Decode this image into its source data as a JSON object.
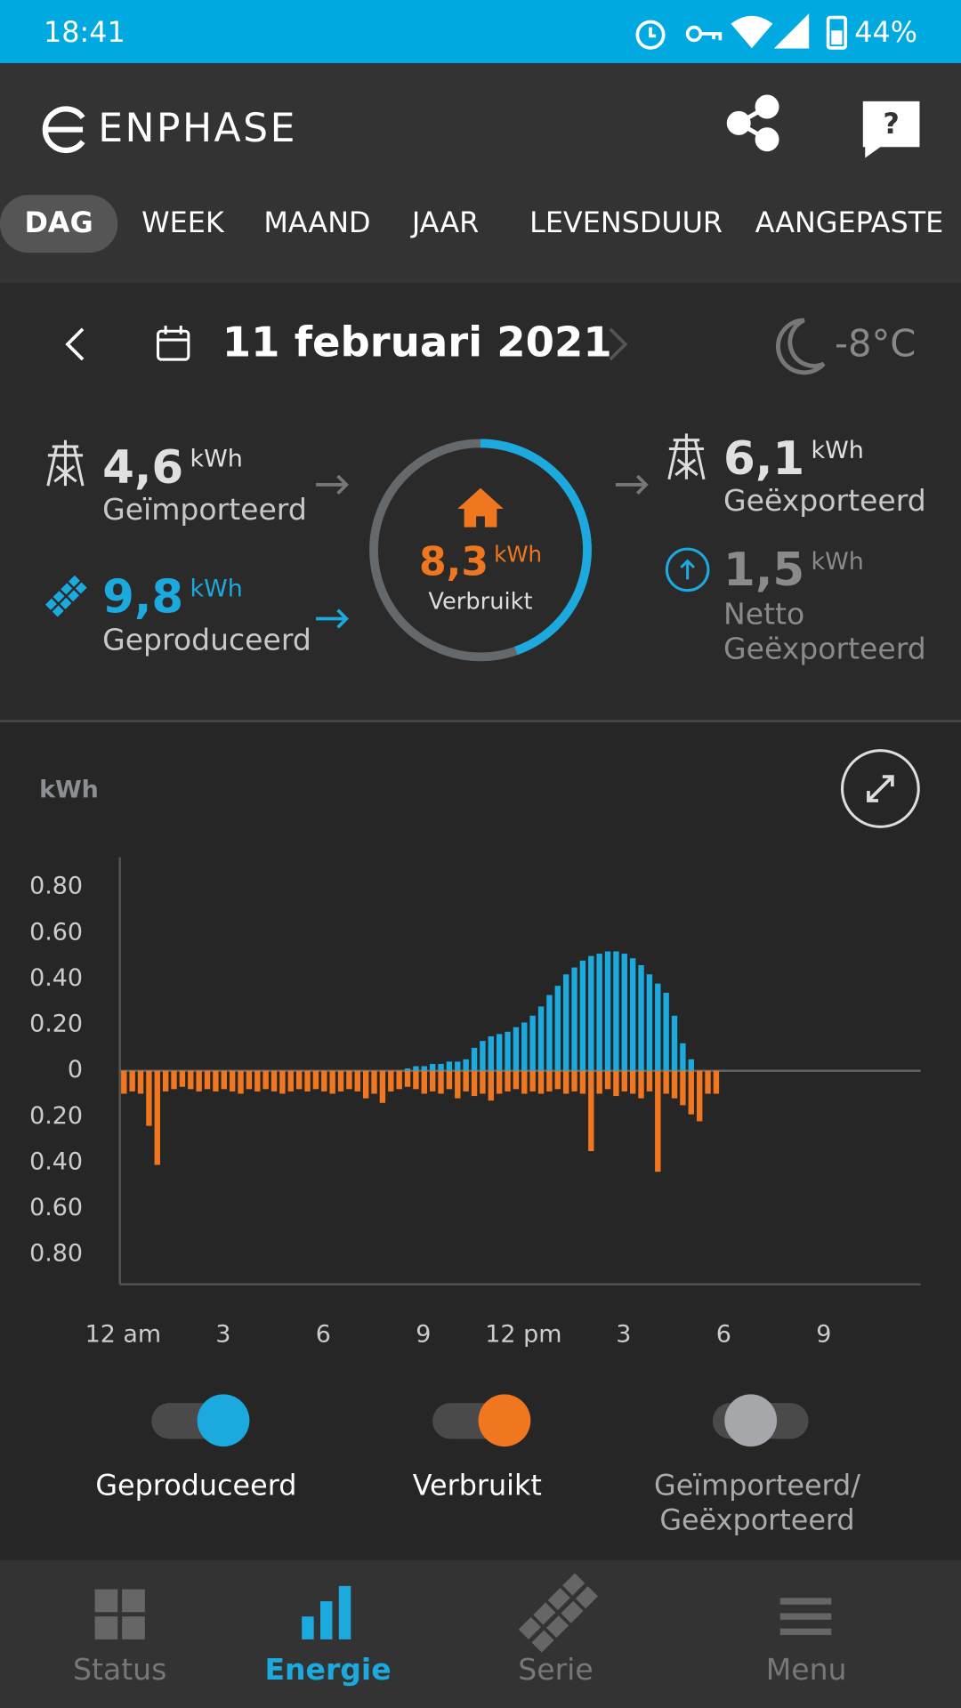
{
  "status_bar": {
    "time": "18:41",
    "battery": "44%"
  },
  "header": {
    "brand": "ENPHASE"
  },
  "tabs": [
    "DAG",
    "WEEK",
    "MAAND",
    "JAAR",
    "LEVENSDUUR",
    "AANGEPASTE"
  ],
  "date_bar": {
    "date": "11 februari 2021",
    "temperature": "-8°C"
  },
  "summary": {
    "imported": {
      "value": 4.6,
      "label": "4,6",
      "unit": "kWh",
      "caption": "Geïmporteerd"
    },
    "produced": {
      "value": 9.8,
      "label": "9,8",
      "unit": "kWh",
      "caption": "Geproduceerd"
    },
    "consumed": {
      "value": 8.3,
      "label": "8,3",
      "unit": "kWh",
      "caption": "Verbruikt"
    },
    "exported": {
      "value": 6.1,
      "label": "6,1",
      "unit": "kWh",
      "caption": "Geëxporteerd"
    },
    "net_exported": {
      "value": 1.5,
      "label": "1,5",
      "unit": "kWh",
      "caption": [
        "Netto",
        "Geëxporteerd"
      ]
    }
  },
  "chart_data": {
    "type": "bar",
    "ylabel": "kWh",
    "x": [
      0,
      0.25,
      0.5,
      0.75,
      1,
      1.25,
      1.5,
      1.75,
      2,
      2.25,
      2.5,
      2.75,
      3,
      3.25,
      3.5,
      3.75,
      4,
      4.25,
      4.5,
      4.75,
      5,
      5.25,
      5.5,
      5.75,
      6,
      6.25,
      6.5,
      6.75,
      7,
      7.25,
      7.5,
      7.75,
      8,
      8.25,
      8.5,
      8.75,
      9,
      9.25,
      9.5,
      9.75,
      10,
      10.25,
      10.5,
      10.75,
      11,
      11.25,
      11.5,
      11.75,
      12,
      12.25,
      12.5,
      12.75,
      13,
      13.25,
      13.5,
      13.75,
      14,
      14.25,
      14.5,
      14.75,
      15,
      15.25,
      15.5,
      15.75,
      16,
      16.25,
      16.5,
      16.75,
      17,
      17.25,
      17.5,
      17.75
    ],
    "series": [
      {
        "name": "Geproduceerd",
        "color": "#1ba9de",
        "visible": true,
        "values": [
          0,
          0,
          0,
          0,
          0,
          0,
          0,
          0,
          0,
          0,
          0,
          0,
          0,
          0,
          0,
          0,
          0,
          0,
          0,
          0,
          0,
          0,
          0,
          0,
          0,
          0,
          0,
          0,
          0,
          0,
          0,
          0,
          0,
          0,
          0.01,
          0.02,
          0.02,
          0.03,
          0.03,
          0.04,
          0.04,
          0.05,
          0.1,
          0.13,
          0.15,
          0.16,
          0.17,
          0.19,
          0.21,
          0.24,
          0.28,
          0.33,
          0.37,
          0.42,
          0.45,
          0.48,
          0.5,
          0.51,
          0.52,
          0.52,
          0.51,
          0.49,
          0.46,
          0.42,
          0.38,
          0.34,
          0.24,
          0.12,
          0.05,
          0,
          0,
          0
        ]
      },
      {
        "name": "Verbruikt",
        "color": "#f07620",
        "visible": true,
        "values": [
          -0.1,
          -0.09,
          -0.1,
          -0.24,
          -0.41,
          -0.09,
          -0.08,
          -0.07,
          -0.08,
          -0.09,
          -0.08,
          -0.09,
          -0.08,
          -0.09,
          -0.1,
          -0.08,
          -0.09,
          -0.08,
          -0.09,
          -0.1,
          -0.09,
          -0.08,
          -0.09,
          -0.08,
          -0.09,
          -0.1,
          -0.09,
          -0.08,
          -0.09,
          -0.12,
          -0.1,
          -0.14,
          -0.09,
          -0.08,
          -0.07,
          -0.08,
          -0.1,
          -0.09,
          -0.1,
          -0.08,
          -0.12,
          -0.09,
          -0.11,
          -0.1,
          -0.13,
          -0.1,
          -0.09,
          -0.08,
          -0.1,
          -0.09,
          -0.1,
          -0.09,
          -0.08,
          -0.1,
          -0.09,
          -0.1,
          -0.35,
          -0.1,
          -0.08,
          -0.11,
          -0.09,
          -0.1,
          -0.12,
          -0.09,
          -0.44,
          -0.1,
          -0.12,
          -0.15,
          -0.19,
          -0.22,
          -0.1,
          -0.1
        ]
      }
    ],
    "extra_legend": {
      "lines": [
        "Geïmporteerd/",
        "Geëxporteerd"
      ],
      "color": "#a5a7aa",
      "visible": false
    },
    "xlim": [
      0,
      24
    ],
    "xticks": [
      {
        "value": 0,
        "label": "12 am"
      },
      3,
      6,
      9,
      {
        "value": 12,
        "label": "12 pm"
      },
      {
        "value": 15,
        "label": "3"
      },
      {
        "value": 18,
        "label": "6"
      },
      {
        "value": 21,
        "label": "9"
      }
    ],
    "ylim": [
      -0.93,
      0.93
    ],
    "yticks": [
      {
        "value": 0.8,
        "label": "0.80"
      },
      {
        "value": 0.6,
        "label": "0.60"
      },
      {
        "value": 0.4,
        "label": "0.40"
      },
      {
        "value": 0.2,
        "label": "0.20"
      },
      0,
      {
        "value": -0.2,
        "label": "0.20"
      },
      {
        "value": -0.4,
        "label": "0.40"
      },
      {
        "value": -0.6,
        "label": "0.60"
      },
      {
        "value": -0.8,
        "label": "0.80"
      }
    ]
  },
  "nav": [
    "Status",
    "Energie",
    "Serie",
    "Menu"
  ]
}
